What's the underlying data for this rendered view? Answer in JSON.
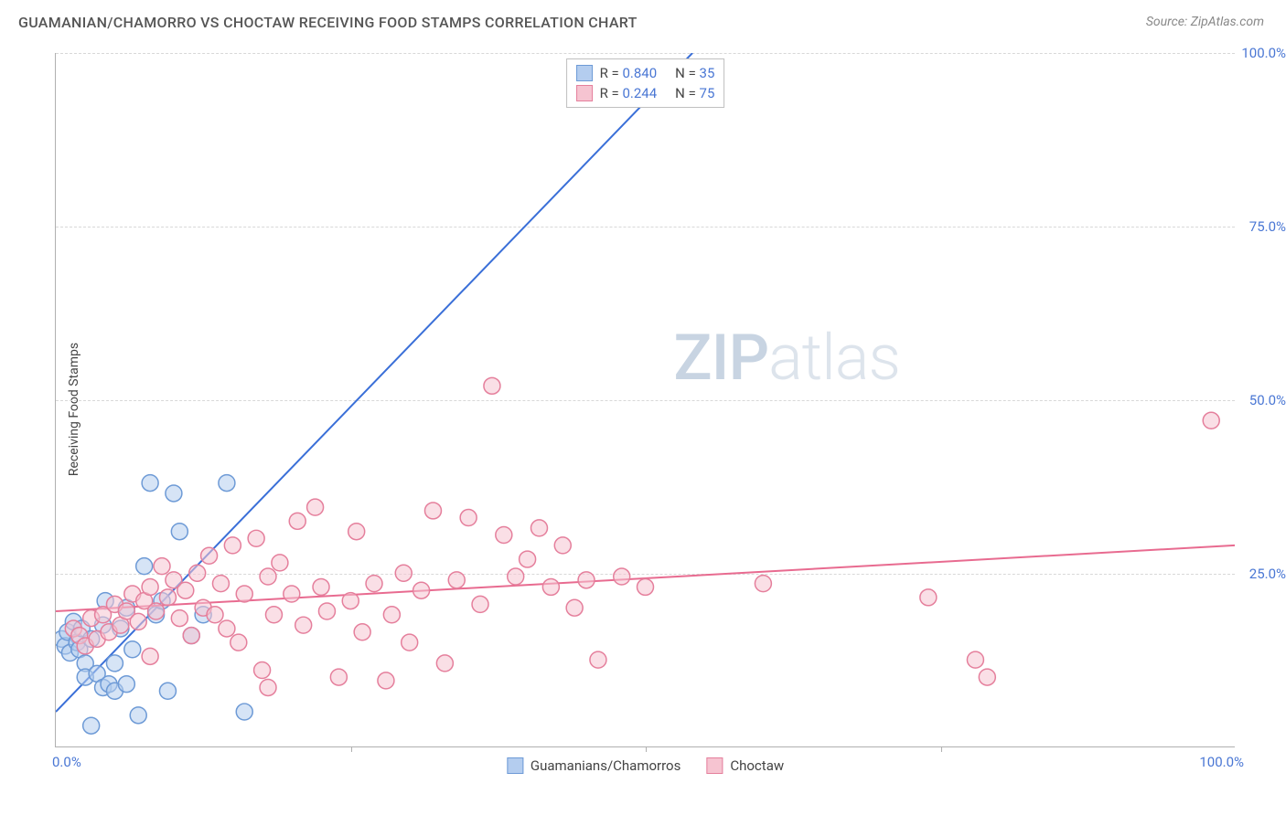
{
  "header": {
    "title": "GUAMANIAN/CHAMORRO VS CHOCTAW RECEIVING FOOD STAMPS CORRELATION CHART",
    "source": "Source: ZipAtlas.com"
  },
  "chart": {
    "type": "scatter",
    "ylabel": "Receiving Food Stamps",
    "xlim": [
      0,
      100
    ],
    "ylim": [
      0,
      100
    ],
    "yticks": [
      25,
      50,
      75,
      100
    ],
    "ytick_labels": [
      "25.0%",
      "50.0%",
      "75.0%",
      "100.0%"
    ],
    "xtick_min_label": "0.0%",
    "xtick_max_label": "100.0%",
    "xtick_marks": [
      25,
      50,
      75
    ],
    "background_color": "#ffffff",
    "grid_color": "#d8d8d8",
    "axis_color": "#b0b0b0",
    "tick_label_color": "#4a77d4",
    "marker_radius": 9,
    "marker_stroke_width": 1.5,
    "watermark": {
      "zip": "ZIP",
      "atlas": "atlas"
    },
    "series": [
      {
        "name": "Guamanians/Chamorros",
        "fill": "#b4cdef",
        "stroke": "#6d9ad6",
        "fill_opacity": 0.55,
        "r_value": "0.840",
        "n_value": "35",
        "trend": {
          "x1": 0,
          "y1": 5,
          "x2": 54,
          "y2": 100,
          "color": "#3a6fd8",
          "width": 2
        },
        "points": [
          [
            0.5,
            15.5
          ],
          [
            0.8,
            14.5
          ],
          [
            1.0,
            16.5
          ],
          [
            1.2,
            13.5
          ],
          [
            1.5,
            18.0
          ],
          [
            1.8,
            15.0
          ],
          [
            2.0,
            14.0
          ],
          [
            2.2,
            17.0
          ],
          [
            2.5,
            12.0
          ],
          [
            2.5,
            10.0
          ],
          [
            3.0,
            15.5
          ],
          [
            3.0,
            3.0
          ],
          [
            3.5,
            10.5
          ],
          [
            4.0,
            17.5
          ],
          [
            4.0,
            8.5
          ],
          [
            4.2,
            21.0
          ],
          [
            4.5,
            9.0
          ],
          [
            5.0,
            12.0
          ],
          [
            5.0,
            8.0
          ],
          [
            5.5,
            17.0
          ],
          [
            6.0,
            20.0
          ],
          [
            6.0,
            9.0
          ],
          [
            6.5,
            14.0
          ],
          [
            7.0,
            4.5
          ],
          [
            7.5,
            26.0
          ],
          [
            8.0,
            38.0
          ],
          [
            8.5,
            19.0
          ],
          [
            9.0,
            21.0
          ],
          [
            9.5,
            8.0
          ],
          [
            10.0,
            36.5
          ],
          [
            10.5,
            31.0
          ],
          [
            11.5,
            16.0
          ],
          [
            12.5,
            19.0
          ],
          [
            14.5,
            38.0
          ],
          [
            16.0,
            5.0
          ]
        ]
      },
      {
        "name": "Choctaw",
        "fill": "#f6c4d1",
        "stroke": "#e57f9c",
        "fill_opacity": 0.55,
        "r_value": "0.244",
        "n_value": "75",
        "trend": {
          "x1": 0,
          "y1": 19.5,
          "x2": 100,
          "y2": 29.0,
          "color": "#e86b90",
          "width": 2
        },
        "points": [
          [
            1.5,
            17.0
          ],
          [
            2.0,
            16.0
          ],
          [
            2.5,
            14.5
          ],
          [
            3.0,
            18.5
          ],
          [
            3.5,
            15.5
          ],
          [
            4.0,
            19.0
          ],
          [
            4.5,
            16.5
          ],
          [
            5.0,
            20.5
          ],
          [
            5.5,
            17.5
          ],
          [
            6.0,
            19.5
          ],
          [
            6.5,
            22.0
          ],
          [
            7.0,
            18.0
          ],
          [
            7.5,
            21.0
          ],
          [
            8.0,
            23.0
          ],
          [
            8.5,
            19.5
          ],
          [
            9.0,
            26.0
          ],
          [
            9.5,
            21.5
          ],
          [
            10.0,
            24.0
          ],
          [
            10.5,
            18.5
          ],
          [
            11.0,
            22.5
          ],
          [
            11.5,
            16.0
          ],
          [
            12.0,
            25.0
          ],
          [
            12.5,
            20.0
          ],
          [
            13.0,
            27.5
          ],
          [
            13.5,
            19.0
          ],
          [
            14.0,
            23.5
          ],
          [
            14.5,
            17.0
          ],
          [
            15.0,
            29.0
          ],
          [
            15.5,
            15.0
          ],
          [
            16.0,
            22.0
          ],
          [
            17.0,
            30.0
          ],
          [
            17.5,
            11.0
          ],
          [
            18.0,
            24.5
          ],
          [
            18.5,
            19.0
          ],
          [
            19.0,
            26.5
          ],
          [
            20.0,
            22.0
          ],
          [
            20.5,
            32.5
          ],
          [
            21.0,
            17.5
          ],
          [
            22.0,
            34.5
          ],
          [
            22.5,
            23.0
          ],
          [
            23.0,
            19.5
          ],
          [
            24.0,
            10.0
          ],
          [
            25.0,
            21.0
          ],
          [
            25.5,
            31.0
          ],
          [
            26.0,
            16.5
          ],
          [
            27.0,
            23.5
          ],
          [
            28.0,
            9.5
          ],
          [
            28.5,
            19.0
          ],
          [
            29.5,
            25.0
          ],
          [
            30.0,
            15.0
          ],
          [
            31.0,
            22.5
          ],
          [
            32.0,
            34.0
          ],
          [
            33.0,
            12.0
          ],
          [
            34.0,
            24.0
          ],
          [
            35.0,
            33.0
          ],
          [
            36.0,
            20.5
          ],
          [
            37.0,
            52.0
          ],
          [
            38.0,
            30.5
          ],
          [
            39.0,
            24.5
          ],
          [
            40.0,
            27.0
          ],
          [
            41.0,
            31.5
          ],
          [
            42.0,
            23.0
          ],
          [
            43.0,
            29.0
          ],
          [
            44.0,
            20.0
          ],
          [
            45.0,
            24.0
          ],
          [
            46.0,
            12.5
          ],
          [
            48.0,
            24.5
          ],
          [
            50.0,
            23.0
          ],
          [
            60.0,
            23.5
          ],
          [
            74.0,
            21.5
          ],
          [
            78.0,
            12.5
          ],
          [
            79.0,
            10.0
          ],
          [
            98.0,
            47.0
          ],
          [
            18.0,
            8.5
          ],
          [
            8.0,
            13.0
          ]
        ]
      }
    ],
    "legend_bottom": [
      {
        "label": "Guamanians/Chamorros",
        "fill": "#b4cdef",
        "stroke": "#6d9ad6"
      },
      {
        "label": "Choctaw",
        "fill": "#f6c4d1",
        "stroke": "#e57f9c"
      }
    ]
  }
}
